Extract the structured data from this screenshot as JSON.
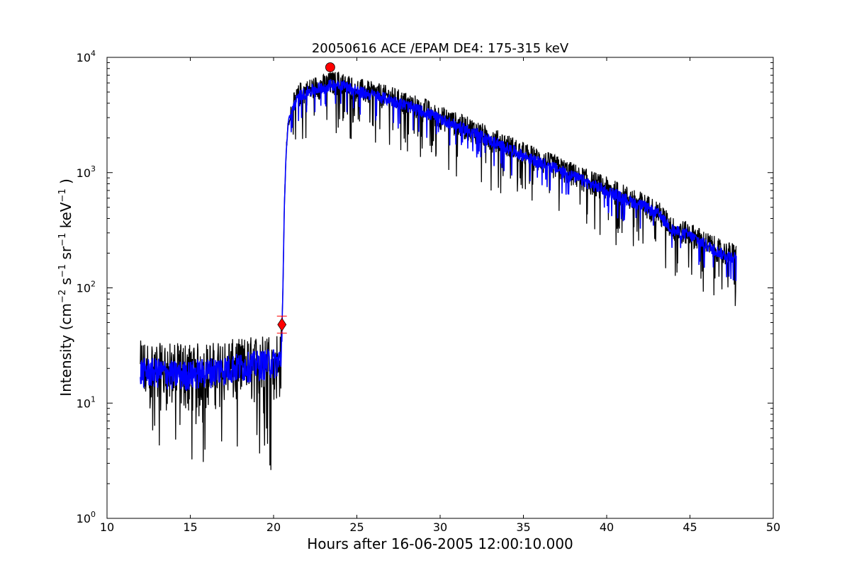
{
  "chart_data": {
    "type": "line",
    "title": "20050616 ACE /EPAM DE4: 175-315 keV",
    "xlabel": "Hours after 16-06-2005 12:00:10.000",
    "ylabel_parts": [
      "Intensity (cm",
      "−2",
      " s",
      "−1",
      " sr",
      "−1",
      " keV",
      "−1",
      " )"
    ],
    "xlim": [
      10,
      50
    ],
    "ylim": [
      1,
      10000
    ],
    "yscale": "log",
    "grid": false,
    "x_ticks": [
      "10",
      "15",
      "20",
      "25",
      "30",
      "35",
      "40",
      "45",
      "50"
    ],
    "y_ticks": [
      {
        "base": "10",
        "exp": "0"
      },
      {
        "base": "10",
        "exp": "1"
      },
      {
        "base": "10",
        "exp": "2"
      },
      {
        "base": "10",
        "exp": "3"
      },
      {
        "base": "10",
        "exp": "4"
      }
    ],
    "series": [
      {
        "color": "#000000",
        "x": [
          12.0,
          13.0,
          14.0,
          15.0,
          16.0,
          17.0,
          18.0,
          19.0,
          20.0,
          20.3,
          20.45,
          20.55,
          20.65,
          20.75,
          20.9,
          21.2,
          21.6,
          22.0,
          22.5,
          23.0,
          23.5,
          24.0,
          25.0,
          26.0,
          27.0,
          28.0,
          29.0,
          30.0,
          31.0,
          32.0,
          33.0,
          34.0,
          35.0,
          36.0,
          37.0,
          38.0,
          39.0,
          40.0,
          41.0,
          42.0,
          43.0,
          44.0,
          45.0,
          46.0,
          47.0,
          47.8
        ],
        "y": [
          20,
          19,
          19,
          19,
          19,
          20,
          21,
          22,
          23,
          23,
          25,
          80,
          500,
          1500,
          2800,
          3800,
          4800,
          5000,
          5400,
          5600,
          5900,
          6000,
          5200,
          4800,
          4400,
          3900,
          3500,
          3000,
          2600,
          2300,
          1950,
          1700,
          1450,
          1250,
          1100,
          950,
          820,
          720,
          620,
          540,
          460,
          320,
          290,
          240,
          200,
          190
        ],
        "noise_floor": [
          10,
          10,
          9,
          9,
          9,
          10,
          11,
          12,
          13,
          13,
          15
        ],
        "spike_min": [
          6.5,
          4.3,
          2.2,
          4.3,
          2.2,
          9,
          9,
          9,
          9,
          4.3
        ]
      },
      {
        "color": "#0000ff",
        "x": [
          12.0,
          13.0,
          14.0,
          15.0,
          16.0,
          17.0,
          18.0,
          19.0,
          20.0,
          20.3,
          20.45,
          20.55,
          20.65,
          20.75,
          20.9,
          21.2,
          21.6,
          22.0,
          22.5,
          23.0,
          23.5,
          24.0,
          25.0,
          26.0,
          27.0,
          28.0,
          29.0,
          30.0,
          31.0,
          32.0,
          33.0,
          34.0,
          35.0,
          36.0,
          37.0,
          38.0,
          39.0,
          40.0,
          41.0,
          42.0,
          43.0,
          44.0,
          45.0,
          46.0,
          47.0,
          47.8
        ],
        "y": [
          19,
          19,
          18,
          18,
          19,
          20,
          21,
          22,
          23,
          23,
          25,
          80,
          520,
          1500,
          2800,
          3800,
          4700,
          5000,
          5300,
          5500,
          5800,
          5900,
          5100,
          4700,
          4300,
          3800,
          3400,
          2950,
          2550,
          2250,
          1900,
          1650,
          1400,
          1220,
          1080,
          930,
          800,
          700,
          600,
          530,
          450,
          315,
          285,
          235,
          195,
          185
        ]
      }
    ],
    "markers": [
      {
        "shape": "diamond",
        "color": "#ff0000",
        "x": 20.5,
        "y": 48
      },
      {
        "shape": "circle",
        "color": "#ff0000",
        "x": 23.4,
        "y": 8200
      }
    ]
  }
}
